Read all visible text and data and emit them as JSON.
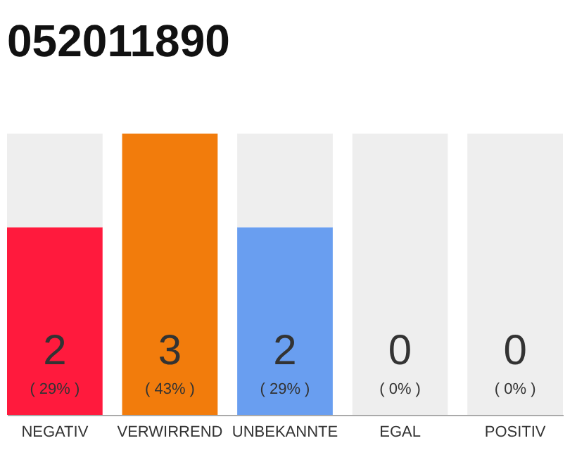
{
  "chart_data": {
    "type": "bar",
    "title": "052011890",
    "categories": [
      "NEGATIV",
      "VERWIRREND",
      "UNBEKANNTE",
      "EGAL",
      "POSITIV"
    ],
    "stacked": true,
    "series": [
      {
        "colors": [
          "#ff1a3d",
          "#f27c0c",
          "#699ef0",
          "#eeeeee",
          "#eeeeee"
        ],
        "values": [
          2,
          3,
          2,
          0,
          0
        ],
        "value_labels": [
          "2",
          "3",
          "2",
          null,
          null
        ]
      },
      {
        "color": "#eeeeee",
        "values": [
          1,
          0,
          1,
          3,
          3
        ]
      }
    ],
    "annotations": [
      "( 29% )",
      "( 43% )",
      "( 29% )",
      "( 0% )",
      "( 0% )",
      "0",
      "0"
    ],
    "ylim": [
      0,
      3
    ],
    "tick_labels": "x",
    "grid": false
  }
}
